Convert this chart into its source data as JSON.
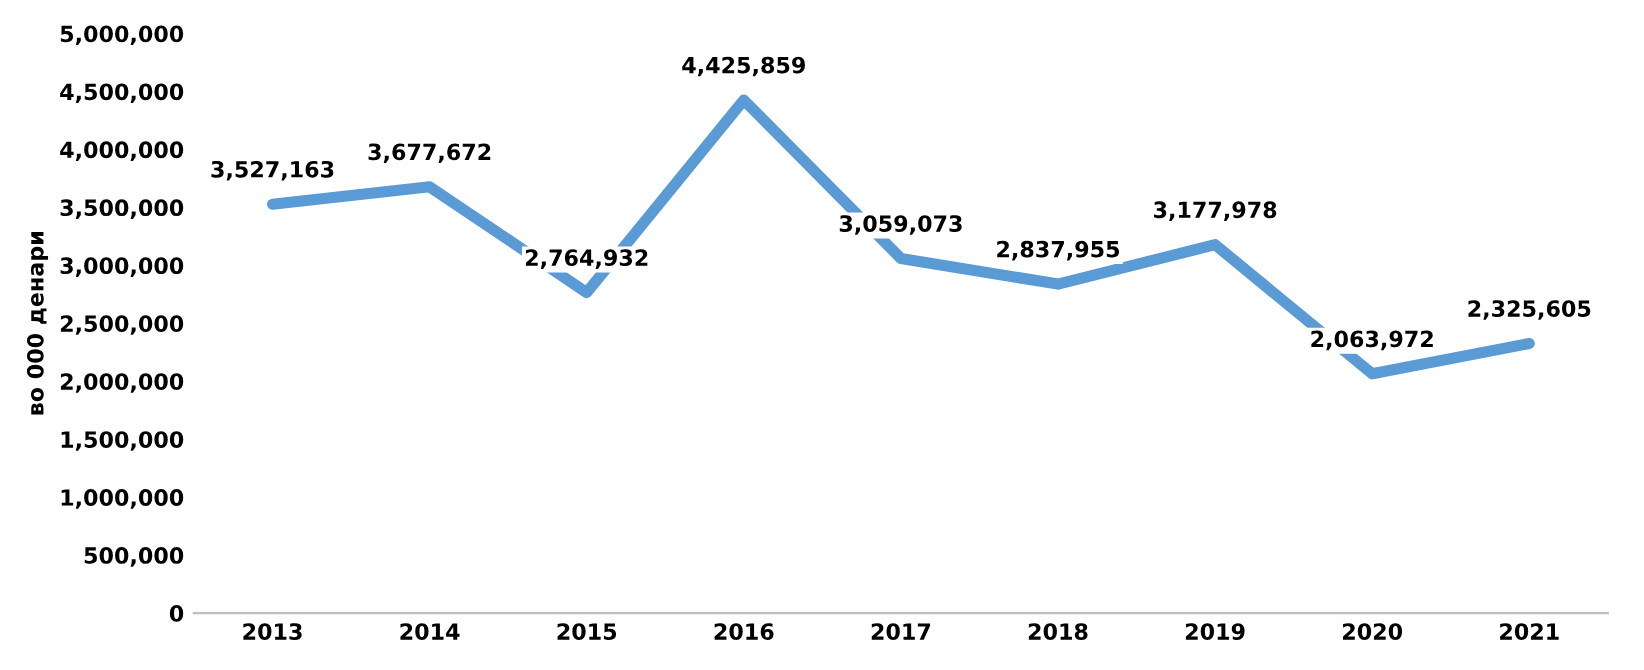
{
  "chart_data": {
    "type": "line",
    "ylabel": "во 000 денари",
    "categories": [
      "2013",
      "2014",
      "2015",
      "2016",
      "2017",
      "2018",
      "2019",
      "2020",
      "2021"
    ],
    "series": [
      {
        "color": "#5b9bd5",
        "values": [
          3527163,
          3677672,
          2764932,
          4425859,
          3059073,
          2837955,
          3177978,
          2063972,
          2325605
        ]
      }
    ],
    "value_labels": [
      "3,527,163",
      "3,677,672",
      "2,764,932",
      "4,425,859",
      "3,059,073",
      "2,837,955",
      "3,177,978",
      "2,063,972",
      "2,325,605"
    ],
    "ylim": [
      0,
      5000000
    ],
    "yticks": [
      {
        "value": 0,
        "label": "0"
      },
      {
        "value": 500000,
        "label": "500,000"
      },
      {
        "value": 1000000,
        "label": "1,000,000"
      },
      {
        "value": 1500000,
        "label": "1,500,000"
      },
      {
        "value": 2000000,
        "label": "2,000,000"
      },
      {
        "value": 2500000,
        "label": "2,500,000"
      },
      {
        "value": 3000000,
        "label": "3,000,000"
      },
      {
        "value": 3500000,
        "label": "3,500,000"
      },
      {
        "value": 4000000,
        "label": "4,000,000"
      },
      {
        "value": 4500000,
        "label": "4,500,000"
      },
      {
        "value": 5000000,
        "label": "5,000,000"
      }
    ],
    "grid": false,
    "marker": "none",
    "line_style": "solid"
  }
}
